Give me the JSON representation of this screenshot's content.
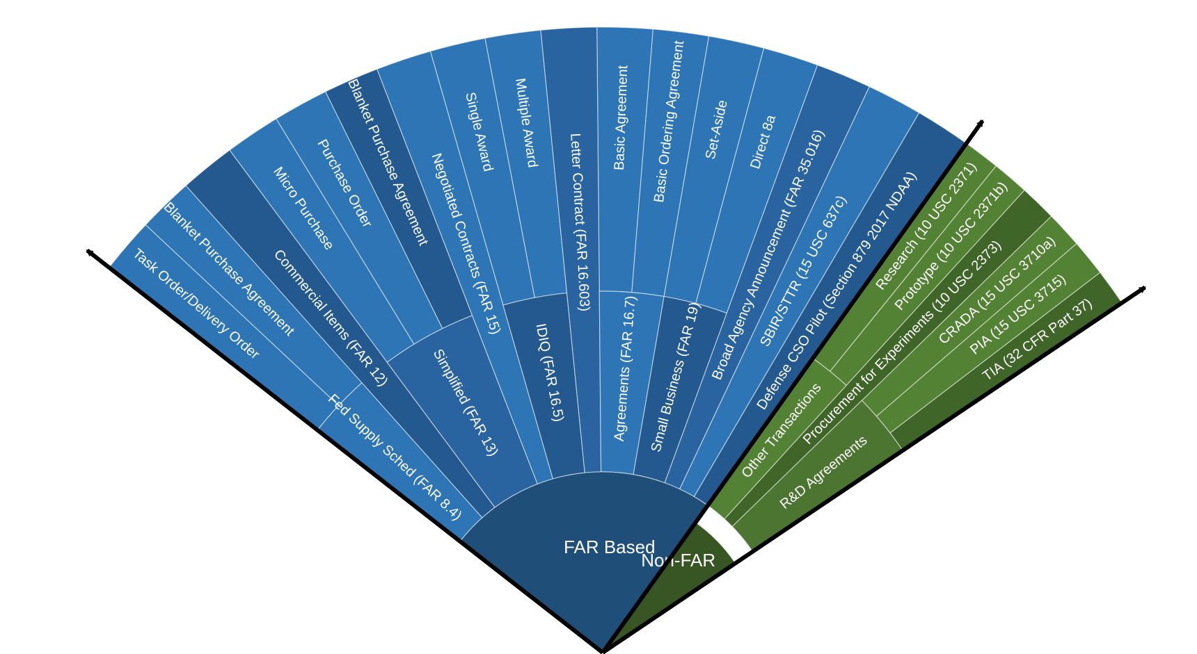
{
  "diagram": {
    "colors": {
      "far_hub": "#1f4e79",
      "far_light": "#2e75b6",
      "far_medium": "#2a64a0",
      "far_dark": "#24598f",
      "nonfar_hub": "#375623",
      "nonfar_light": "#548235",
      "nonfar_medium": "#4b7530",
      "nonfar_dark": "#3f6528",
      "divider": "#000000"
    },
    "hubs": [
      {
        "id": "far",
        "label": "FAR Based"
      },
      {
        "id": "nonfar",
        "label": "Non-FAR"
      }
    ],
    "groups": [
      {
        "hub": "far",
        "label": "Fed Supply Sched (FAR 8.4)",
        "items": [
          {
            "label": "Task Order/Delivery Order"
          },
          {
            "label": "Blanket Purchase Agreement"
          }
        ]
      },
      {
        "hub": "far",
        "label": "Commercial Items (FAR 12)",
        "items": [
          {
            "label": ""
          }
        ]
      },
      {
        "hub": "far",
        "label": "Simplified (FAR 13)",
        "items": [
          {
            "label": "Micro Purchase"
          },
          {
            "label": "Purchase Order"
          },
          {
            "label": "Blanket Purchase Agreement"
          }
        ]
      },
      {
        "hub": "far",
        "label": "Negotiated Contracts (FAR 15)",
        "items": [
          {
            "label": ""
          }
        ]
      },
      {
        "hub": "far",
        "label": "IDIQ (FAR 16.5)",
        "items": [
          {
            "label": "Single Award"
          },
          {
            "label": "Multiple Award"
          }
        ]
      },
      {
        "hub": "far",
        "label": "Letter Contract (FAR 16.603)",
        "items": [
          {
            "label": ""
          }
        ]
      },
      {
        "hub": "far",
        "label": "Agreements (FAR 16.7)",
        "items": [
          {
            "label": "Basic Agreement"
          },
          {
            "label": "Basic Ordering Agreement"
          }
        ]
      },
      {
        "hub": "far",
        "label": "Small Business (FAR 19)",
        "items": [
          {
            "label": "Set-Aside"
          },
          {
            "label": "Direct 8a"
          }
        ]
      },
      {
        "hub": "far",
        "label": "Broad Agency Announcement  (FAR 35.016)",
        "items": [
          {
            "label": ""
          }
        ]
      },
      {
        "hub": "far",
        "label": "SBIR/STTR (15 USC 637c)",
        "items": [
          {
            "label": ""
          }
        ]
      },
      {
        "hub": "far",
        "label": "Defense CSO Pilot (Section 879 2017 NDAA)",
        "items": [
          {
            "label": ""
          }
        ]
      },
      {
        "hub": "nonfar",
        "label": "Other Transactions",
        "items": [
          {
            "label": "Research (10 USC 2371)"
          },
          {
            "label": "Prototype (10 USC 2371b)"
          }
        ]
      },
      {
        "hub": "nonfar",
        "label": "Procurement for Experiments (10 USC 2373)",
        "items": [
          {
            "label": ""
          }
        ]
      },
      {
        "hub": "nonfar",
        "label": "R&D Agreements",
        "items": [
          {
            "label": "CRADA (15 USC 3710a)"
          },
          {
            "label": "PIA (15 USC 3715)"
          },
          {
            "label": "TIA (32 CFR Part 37)"
          }
        ]
      }
    ]
  }
}
